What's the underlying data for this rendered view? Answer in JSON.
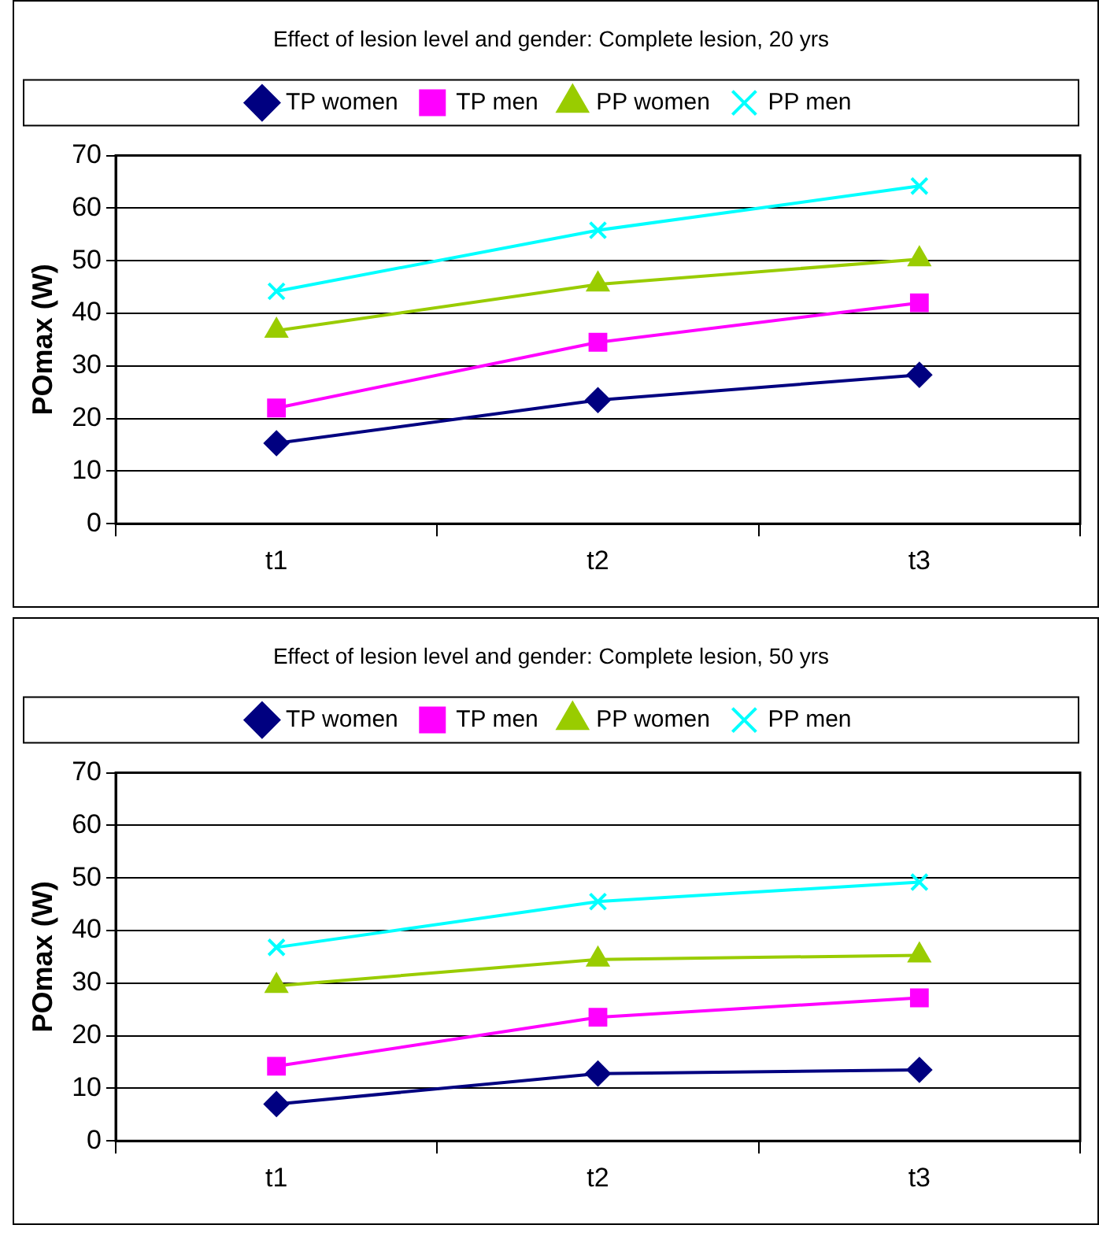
{
  "chart_data": [
    {
      "type": "line",
      "title": "Effect of lesion level and gender: Complete lesion, 20 yrs",
      "ylabel": "POmax (W)",
      "categories": [
        "t1",
        "t2",
        "t3"
      ],
      "ylim": [
        0,
        70
      ],
      "yticks": [
        0,
        10,
        20,
        30,
        40,
        50,
        60,
        70
      ],
      "grid": "y",
      "legend": "top",
      "series": [
        {
          "name": "TP women",
          "color": "#000080",
          "marker": "diamond",
          "values": [
            15.3,
            23.5,
            28.3
          ]
        },
        {
          "name": "TP men",
          "color": "#ff00ff",
          "marker": "square",
          "values": [
            22,
            34.5,
            42
          ]
        },
        {
          "name": "PP women",
          "color": "#99cc00",
          "marker": "triangle",
          "values": [
            36.7,
            45.5,
            50.3
          ]
        },
        {
          "name": "PP men",
          "color": "#00ffff",
          "marker": "cross",
          "values": [
            44.2,
            55.8,
            64.2
          ]
        }
      ]
    },
    {
      "type": "line",
      "title": "Effect of lesion level and gender: Complete lesion, 50 yrs",
      "ylabel": "POmax (W)",
      "categories": [
        "t1",
        "t2",
        "t3"
      ],
      "ylim": [
        0,
        70
      ],
      "yticks": [
        0,
        10,
        20,
        30,
        40,
        50,
        60,
        70
      ],
      "grid": "y",
      "legend": "top",
      "series": [
        {
          "name": "TP women",
          "color": "#000080",
          "marker": "diamond",
          "values": [
            7,
            12.8,
            13.5
          ]
        },
        {
          "name": "TP men",
          "color": "#ff00ff",
          "marker": "square",
          "values": [
            14.2,
            23.5,
            27.2
          ]
        },
        {
          "name": "PP women",
          "color": "#99cc00",
          "marker": "triangle",
          "values": [
            29.5,
            34.5,
            35.3
          ]
        },
        {
          "name": "PP men",
          "color": "#00ffff",
          "marker": "cross",
          "values": [
            36.8,
            45.5,
            49.2
          ]
        }
      ]
    }
  ]
}
